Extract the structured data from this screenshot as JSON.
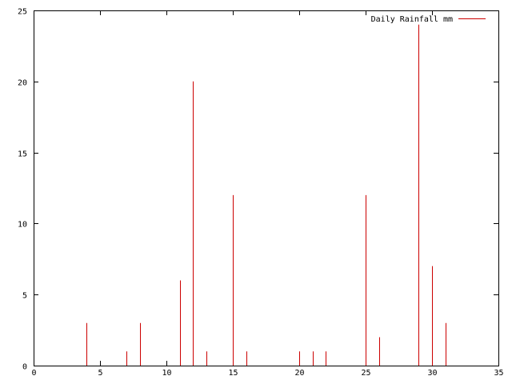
{
  "chart_data": {
    "type": "bar",
    "series": [
      {
        "name": "Daily Rainfall mm",
        "color": "#cc0000",
        "x": [
          4,
          7,
          8,
          11,
          12,
          13,
          15,
          16,
          20,
          21,
          22,
          25,
          26,
          29,
          30,
          31
        ],
        "values": [
          3,
          1,
          3,
          6,
          20,
          1,
          12,
          1,
          1,
          1,
          1,
          12,
          2,
          24,
          7,
          3
        ]
      }
    ],
    "xlim": [
      0,
      35
    ],
    "ylim": [
      0,
      25
    ],
    "xticks": [
      "0",
      "5",
      "10",
      "15",
      "20",
      "25",
      "30",
      "35"
    ],
    "yticks": [
      "0",
      "5",
      "10",
      "15",
      "20",
      "25"
    ],
    "grid": false,
    "legend_position": "top-right"
  }
}
